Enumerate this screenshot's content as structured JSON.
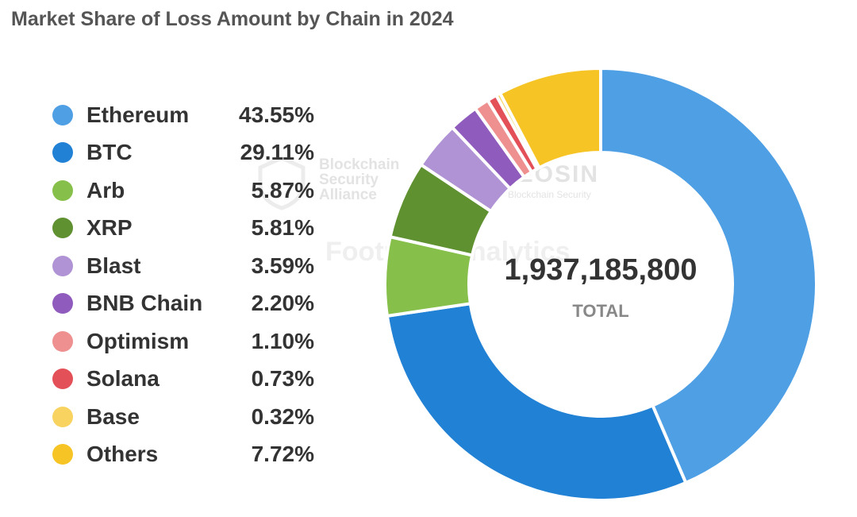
{
  "title": "Market Share of Loss Amount by Chain in 2024",
  "chart_data": {
    "type": "pie",
    "style": "donut",
    "title": "Market Share of Loss Amount by Chain in 2024",
    "legend_position": "left",
    "center_value": "1,937,185,800",
    "center_label": "TOTAL",
    "slices": [
      {
        "name": "Ethereum",
        "label": "43.55%",
        "value": 43.55,
        "color": "#4f9fe5"
      },
      {
        "name": "BTC",
        "label": "29.11%",
        "value": 29.11,
        "color": "#2181d5"
      },
      {
        "name": "Arb",
        "label": "5.87%",
        "value": 5.87,
        "color": "#86c04a"
      },
      {
        "name": "XRP",
        "label": "5.81%",
        "value": 5.81,
        "color": "#5f9131"
      },
      {
        "name": "Blast",
        "label": "3.59%",
        "value": 3.59,
        "color": "#b093d5"
      },
      {
        "name": "BNB Chain",
        "label": "2.20%",
        "value": 2.2,
        "color": "#8f5bbd"
      },
      {
        "name": "Optimism",
        "label": "1.10%",
        "value": 1.1,
        "color": "#ef9090"
      },
      {
        "name": "Solana",
        "label": "0.73%",
        "value": 0.73,
        "color": "#e35057"
      },
      {
        "name": "Base",
        "label": "0.32%",
        "value": 0.32,
        "color": "#f8d35f"
      },
      {
        "name": "Others",
        "label": "7.72%",
        "value": 7.72,
        "color": "#f6c424"
      }
    ]
  },
  "watermarks": {
    "bsa": "Blockchain Security Alliance",
    "footprint": "Footprint Analytics",
    "beosin": "BEOSIN",
    "beosin_sub": "Blockchain Security"
  }
}
